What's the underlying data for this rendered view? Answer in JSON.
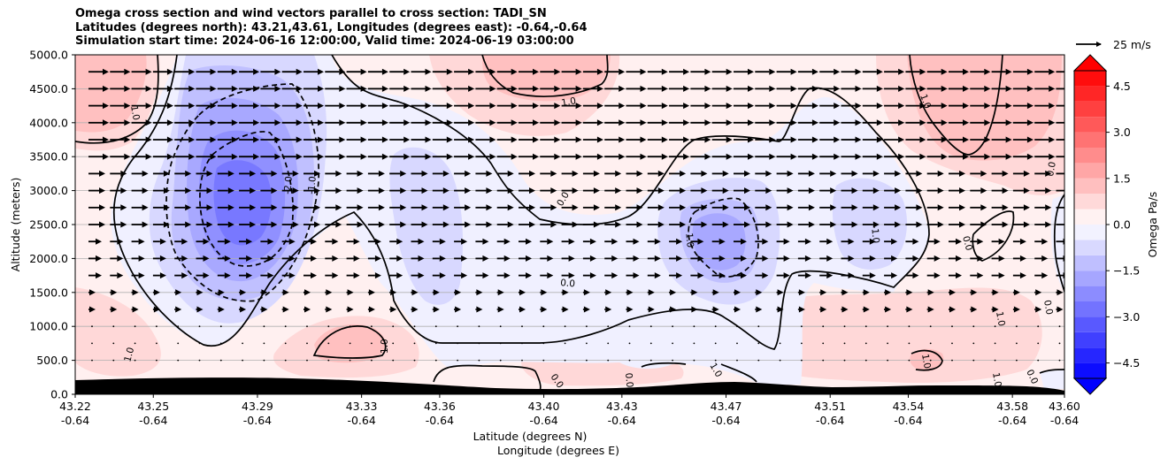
{
  "chart_data": {
    "type": "contour",
    "title_lines": [
      "Omega cross section and wind vectors parallel to cross section: TADI_SN",
      "Latitudes (degrees north): 43.21,43.61, Longitudes (degrees east): -0.64,-0.64",
      "Simulation start time: 2024-06-16 12:00:00, Valid time: 2024-06-19 03:00:00"
    ],
    "ylabel": "Altitude (meters)",
    "xlabel_lat": "Latitude (degrees N)",
    "xlabel_lon": "Longitude (degrees E)",
    "x_ticks": [
      {
        "lat": "43.22",
        "lon": "-0.64"
      },
      {
        "lat": "43.25",
        "lon": "-0.64"
      },
      {
        "lat": "43.29",
        "lon": "-0.64"
      },
      {
        "lat": "43.33",
        "lon": "-0.64"
      },
      {
        "lat": "43.36",
        "lon": "-0.64"
      },
      {
        "lat": "43.40",
        "lon": "-0.64"
      },
      {
        "lat": "43.43",
        "lon": "-0.64"
      },
      {
        "lat": "43.47",
        "lon": "-0.64"
      },
      {
        "lat": "43.51",
        "lon": "-0.64"
      },
      {
        "lat": "43.54",
        "lon": "-0.64"
      },
      {
        "lat": "43.58",
        "lon": "-0.64"
      },
      {
        "lat": "43.60",
        "lon": "-0.64"
      }
    ],
    "y_ticks": [
      "0.0",
      "500.0",
      "1000.0",
      "1500.0",
      "2000.0",
      "2500.0",
      "3000.0",
      "3500.0",
      "4000.0",
      "4500.0",
      "5000.0"
    ],
    "ylim": [
      0,
      5000
    ],
    "xlim": [
      43.22,
      43.6
    ],
    "grid": "horizontal",
    "colorbar": {
      "label": "Omega Pa/s",
      "ticks": [
        "4.5",
        "3.0",
        "1.5",
        "0.0",
        "−1.5",
        "−3.0",
        "−4.5"
      ],
      "range": [
        -5,
        5
      ],
      "cmap": "bwr",
      "colors": {
        "positive_max": "#ff0000",
        "negative_max": "#0000ff",
        "neutral": "#ffffff"
      }
    },
    "wind_key": {
      "label": "25 m/s",
      "speed": 25
    },
    "contour_labels": [
      "-1.0",
      "-2.0",
      "0.0",
      "1.0"
    ],
    "fill_bands": [
      {
        "value": 0.25,
        "color": "#fff0f0"
      },
      {
        "value": 0.75,
        "color": "#ffd8d8"
      },
      {
        "value": 1.25,
        "color": "#ffc0c0"
      },
      {
        "value": -0.25,
        "color": "#f0f0ff"
      },
      {
        "value": -0.75,
        "color": "#d8d8ff"
      },
      {
        "value": -1.25,
        "color": "#c0c0ff"
      },
      {
        "value": -1.75,
        "color": "#a8a8ff"
      },
      {
        "value": -2.25,
        "color": "#9090ff"
      },
      {
        "value": -2.75,
        "color": "#7878ff"
      }
    ],
    "terrain_color": "#000000"
  }
}
